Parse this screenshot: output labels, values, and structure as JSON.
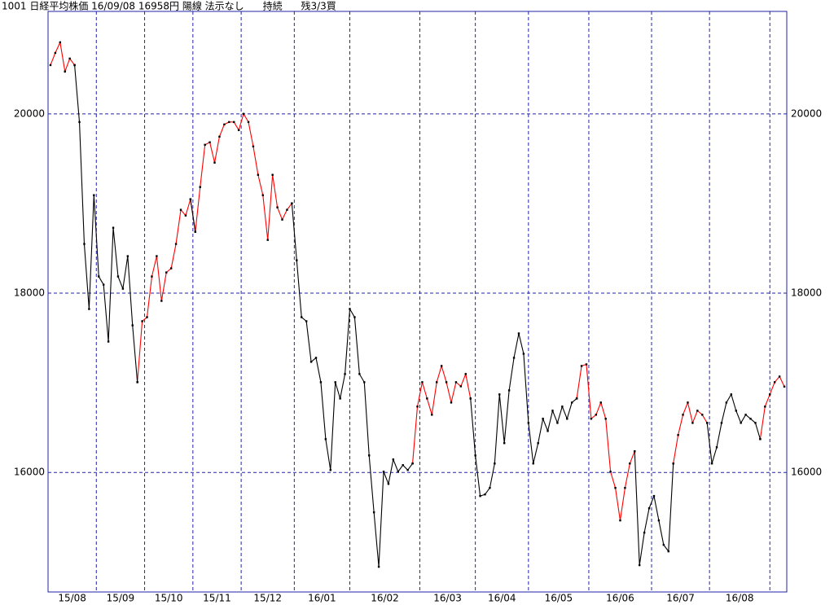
{
  "chart_data": {
    "type": "line",
    "title": "1001 日経平均株価 16/09/08 16958円 陽線 法示なし      持続      残3/3買",
    "ylim": [
      14667,
      21143
    ],
    "yticks": [
      16000,
      18000,
      20000
    ],
    "xlim": [
      -0.5,
      152.5
    ],
    "xticks": [
      9.5,
      19.5,
      29.5,
      39.5,
      50.5,
      62,
      76.5,
      88,
      99,
      111.5,
      124.5,
      136.5,
      149
    ],
    "month_labels": [
      "15/08",
      "15/09",
      "15/10",
      "15/11",
      "15/12",
      "16/01",
      "16/02",
      "16/03",
      "16/04",
      "16/05",
      "16/06",
      "16/07",
      "16/08",
      null
    ],
    "grid": true,
    "frame_color": "#2222aa",
    "marker_color": "#000000",
    "series": [
      {
        "color": "#ff0000",
        "values": [
          20544,
          20680,
          20798,
          20472,
          20617,
          20544,
          null,
          null,
          null,
          null,
          null,
          null,
          null,
          null,
          null,
          null,
          null,
          null,
          17007,
          17687,
          17732,
          18186,
          18413,
          17914,
          18231,
          18277,
          18549,
          18930,
          18866,
          19048,
          18685,
          19184,
          19655,
          19683,
          19456,
          19746,
          19882,
          19909,
          19909,
          19819,
          20000,
          19909,
          19637,
          19320,
          19093,
          18594,
          19320,
          18957,
          18821,
          18930,
          19002,
          null,
          null,
          null,
          null,
          null,
          null,
          null,
          null,
          null,
          null,
          null,
          null,
          null,
          null,
          null,
          null,
          null,
          null,
          null,
          null,
          null,
          null,
          null,
          null,
          16100,
          16735,
          17007,
          16825,
          16644,
          17007,
          17188,
          17007,
          16780,
          17007,
          16961,
          17098,
          16825,
          null,
          null,
          null,
          null,
          null,
          null,
          null,
          null,
          null,
          null,
          null,
          null,
          null,
          null,
          null,
          null,
          null,
          null,
          null,
          null,
          null,
          16825,
          17188,
          17206,
          16599,
          16644,
          16780,
          16599,
          16009,
          15828,
          15465,
          15828,
          16100,
          16236,
          null,
          null,
          null,
          null,
          null,
          null,
          null,
          16100,
          16418,
          16644,
          16780,
          16553,
          16689,
          16644,
          16553,
          null,
          null,
          null,
          null,
          null,
          null,
          null,
          null,
          null,
          null,
          16372,
          16735,
          16871,
          17007,
          17070,
          16958
        ]
      },
      {
        "color": "#000000",
        "values": [
          null,
          null,
          null,
          null,
          null,
          20544,
          19909,
          18549,
          17823,
          19093,
          18186,
          18095,
          17460,
          18730,
          18186,
          18050,
          18413,
          17641,
          17007,
          null,
          null,
          null,
          null,
          null,
          null,
          null,
          null,
          null,
          null,
          19048,
          18685,
          null,
          null,
          null,
          null,
          null,
          null,
          null,
          null,
          null,
          null,
          null,
          null,
          null,
          null,
          null,
          null,
          null,
          null,
          null,
          19002,
          18367,
          17732,
          17687,
          17234,
          17279,
          17007,
          16372,
          16027,
          17007,
          16825,
          17098,
          17823,
          17732,
          17098,
          17007,
          16190,
          15556,
          14948,
          16009,
          15873,
          16145,
          16009,
          16082,
          16027,
          16100,
          null,
          null,
          null,
          null,
          null,
          null,
          null,
          null,
          null,
          null,
          null,
          16825,
          16190,
          15737,
          15755,
          15828,
          16100,
          16871,
          16327,
          16916,
          17279,
          17551,
          17324,
          16553,
          16100,
          16327,
          16599,
          16463,
          16689,
          16553,
          16735,
          16599,
          16780,
          16825,
          null,
          null,
          null,
          null,
          null,
          null,
          null,
          null,
          null,
          null,
          null,
          16236,
          14966,
          15329,
          15601,
          15737,
          15465,
          15193,
          15120,
          16100,
          null,
          null,
          null,
          null,
          null,
          null,
          16553,
          16100,
          16281,
          16553,
          16780,
          16871,
          16689,
          16553,
          16644,
          16599,
          16553,
          16372,
          null,
          null,
          null,
          null,
          null
        ]
      }
    ]
  }
}
